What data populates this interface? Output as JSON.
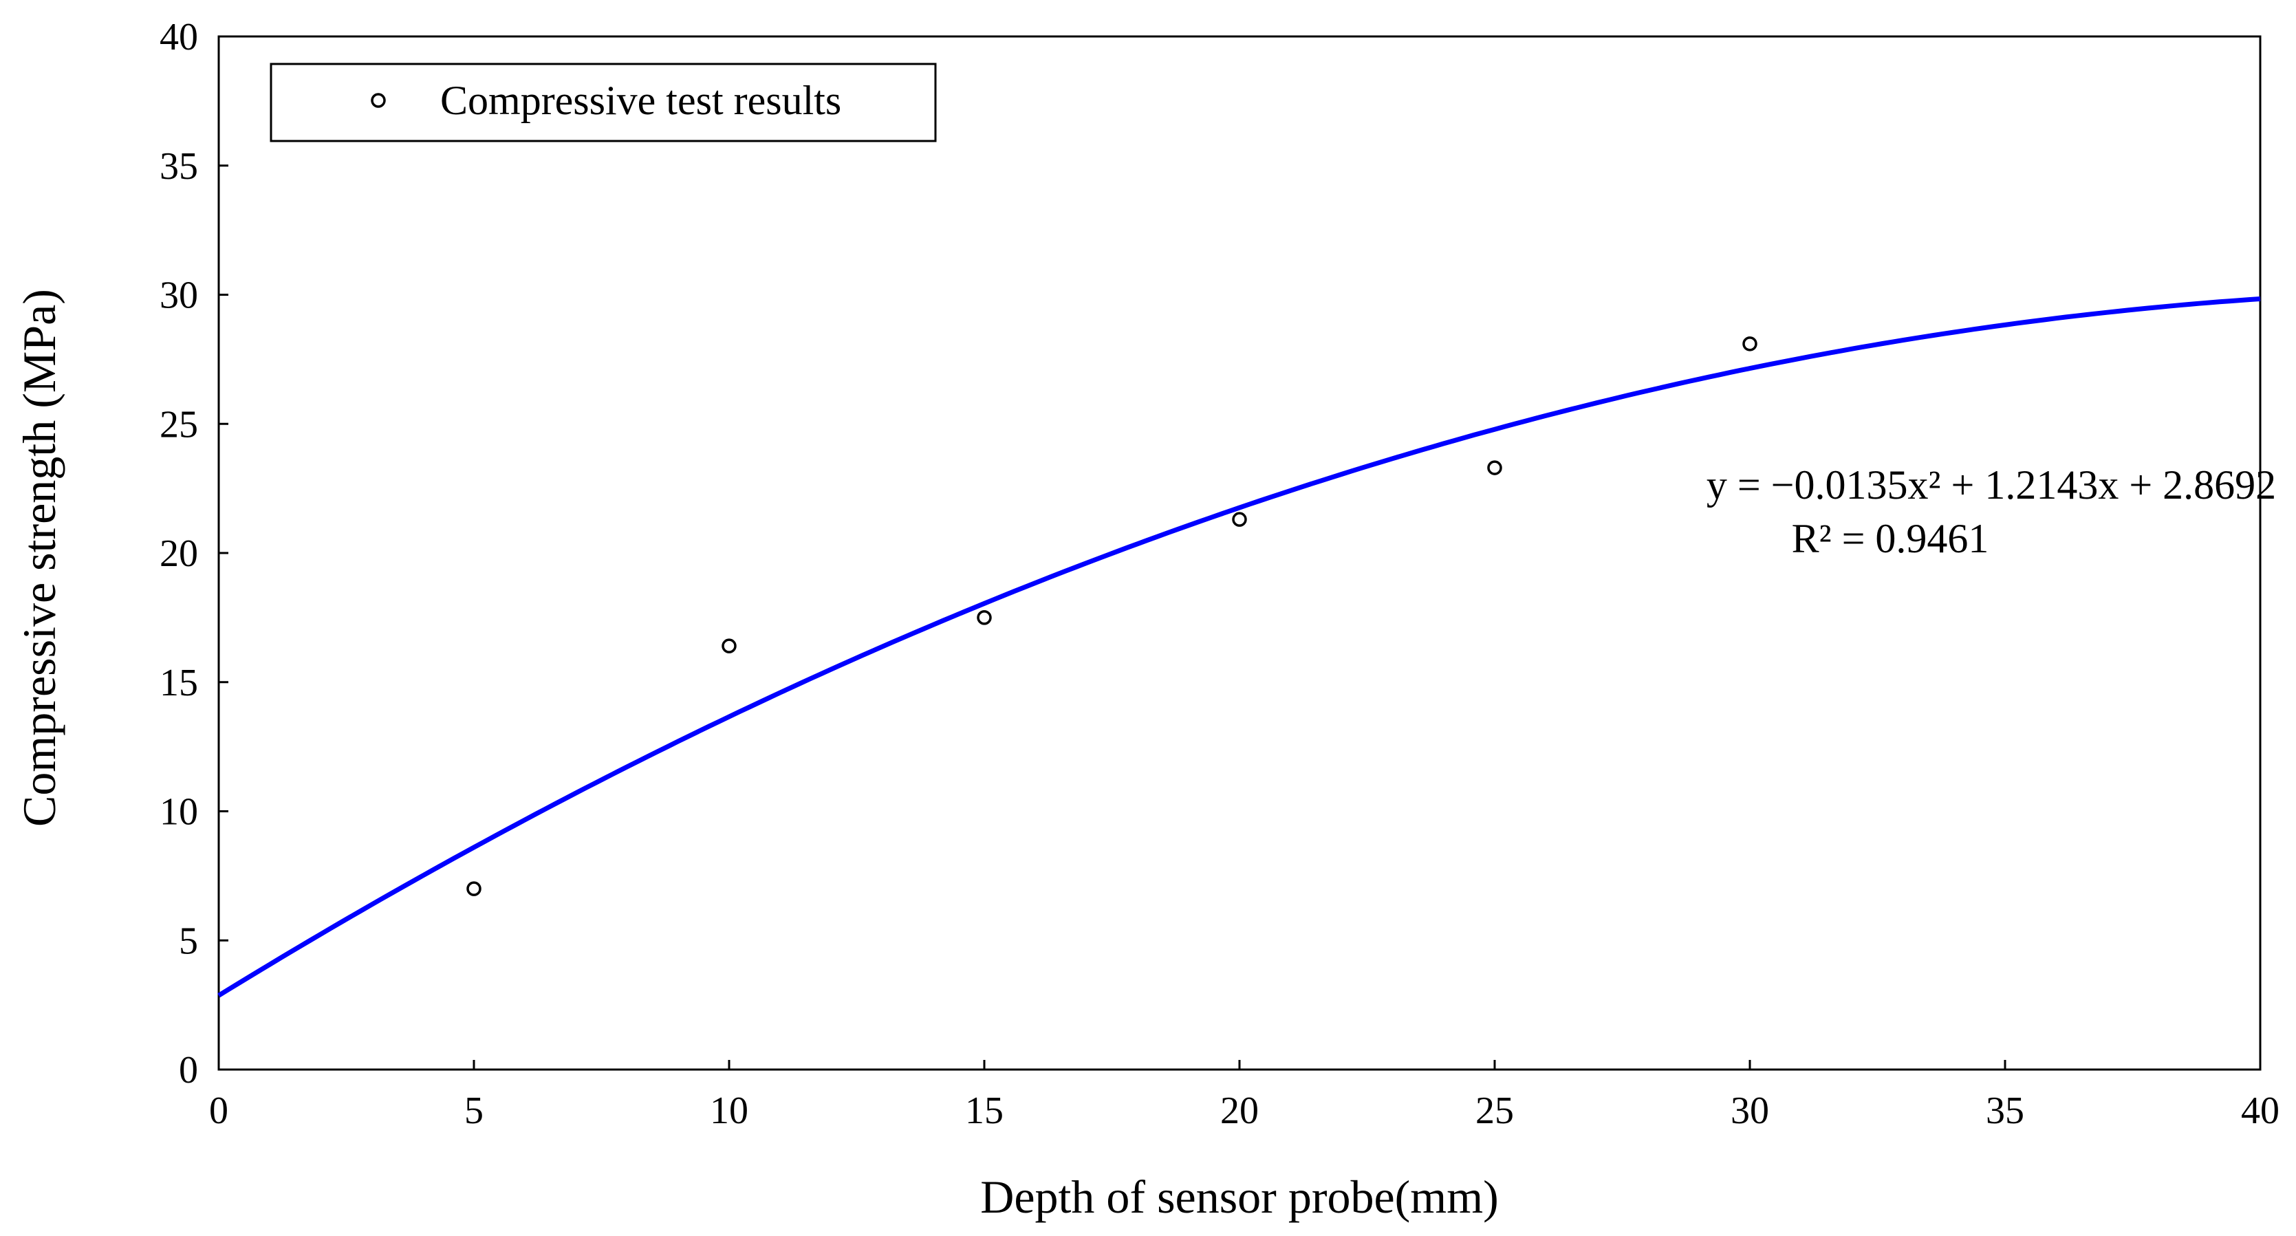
{
  "chart_data": {
    "type": "scatter",
    "title": "",
    "xlabel": "Depth of sensor probe(mm)",
    "ylabel": "Compressive strength (MPa)",
    "xlim": [
      0,
      40
    ],
    "ylim": [
      0,
      40
    ],
    "xticks": [
      0,
      5,
      10,
      15,
      20,
      25,
      30,
      35,
      40
    ],
    "yticks": [
      0,
      5,
      10,
      15,
      20,
      25,
      30,
      35,
      40
    ],
    "grid": false,
    "legend": {
      "position": "top-left",
      "entries": [
        "Compressive test results"
      ]
    },
    "series": [
      {
        "name": "Compressive test results",
        "marker": "open-circle",
        "color": "#000000",
        "x": [
          5,
          10,
          15,
          20,
          25,
          30
        ],
        "y": [
          7.0,
          16.4,
          17.5,
          21.3,
          23.3,
          28.1
        ]
      }
    ],
    "trendline": {
      "type": "polynomial-2",
      "color": "#0000ff",
      "coefficients": {
        "a": -0.0135,
        "b": 1.2143,
        "c": 2.8692
      },
      "x_range": [
        0,
        40
      ]
    },
    "annotations": {
      "equation": "y = −0.0135x² + 1.2143x + 2.8692",
      "r_squared": "R² = 0.9461"
    }
  }
}
